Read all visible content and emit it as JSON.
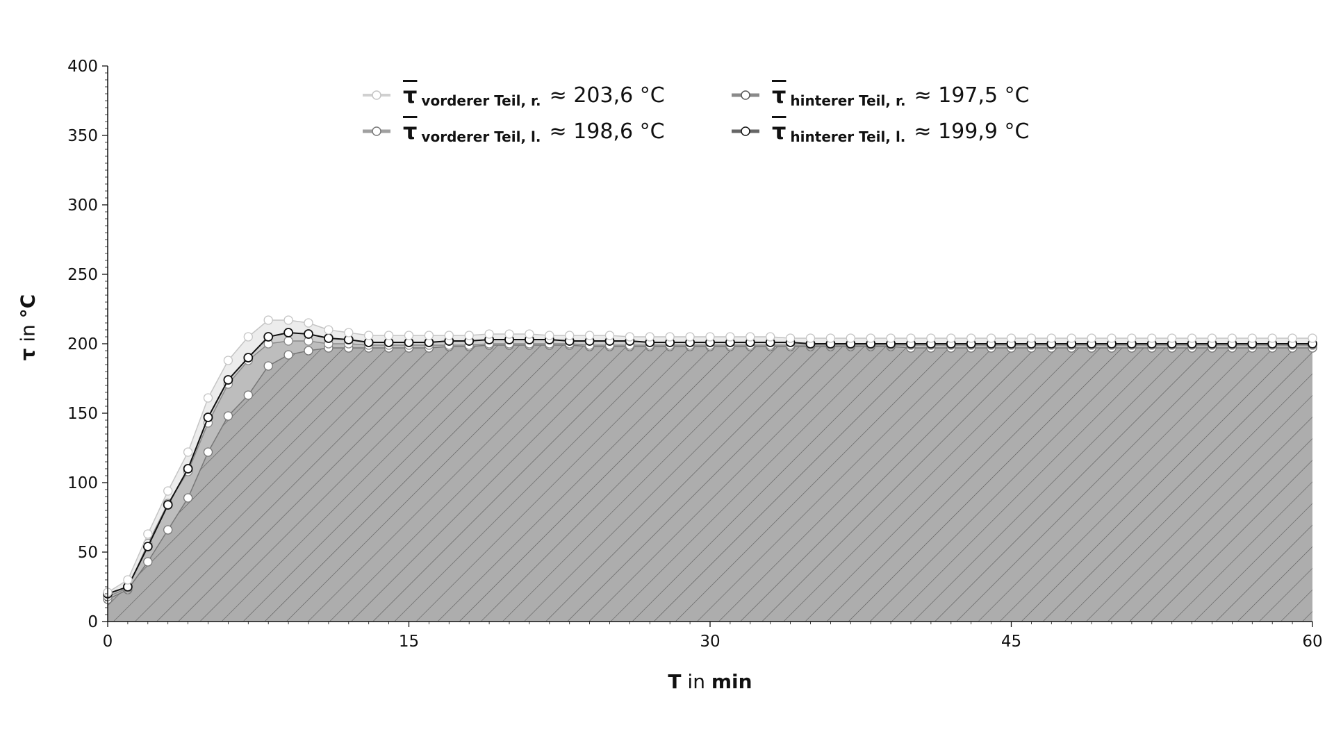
{
  "chart_data": {
    "type": "area",
    "xlabel": {
      "bold": "T",
      "rest": " in ",
      "unit": "min"
    },
    "ylabel": {
      "bold": "τ",
      "rest": " in ",
      "unit": "°C"
    },
    "xlim": [
      0,
      60
    ],
    "ylim": [
      0,
      400
    ],
    "xticks": [
      "0",
      "15",
      "30",
      "45",
      "60"
    ],
    "yticks": [
      "0",
      "50",
      "100",
      "150",
      "200",
      "250",
      "300",
      "350",
      "400"
    ],
    "grid": false,
    "legend_position": "top-center",
    "x": [
      0,
      1,
      2,
      3,
      4,
      5,
      6,
      7,
      8,
      9,
      10,
      11,
      12,
      13,
      14,
      15,
      16,
      17,
      18,
      19,
      20,
      21,
      22,
      23,
      24,
      25,
      26,
      27,
      28,
      29,
      30,
      31,
      32,
      33,
      34,
      35,
      36,
      37,
      38,
      39,
      40,
      41,
      42,
      43,
      44,
      45,
      46,
      47,
      48,
      49,
      50,
      51,
      52,
      53,
      54,
      55,
      56,
      57,
      58,
      59,
      60
    ],
    "series": [
      {
        "key": "vr",
        "symbol": "τ",
        "sub": "vorderer Teil, r.",
        "value": "≈ 203,6 °C",
        "color": "#c4c4c4",
        "fill": "#ececec",
        "values": [
          21,
          30,
          63,
          94,
          122,
          161,
          188,
          205,
          217,
          217,
          215,
          210,
          208,
          206,
          206,
          206,
          206,
          206,
          206,
          207,
          207,
          207,
          206,
          206,
          206,
          206,
          205,
          205,
          205,
          205,
          205,
          205,
          205,
          205,
          204,
          204,
          204,
          204,
          204,
          204,
          204,
          204,
          204,
          204,
          204,
          204,
          204,
          204,
          204,
          204,
          204,
          204,
          204,
          204,
          204,
          204,
          204,
          204,
          204,
          204,
          204
        ]
      },
      {
        "key": "hl",
        "symbol": "τ",
        "sub": "hinterer Teil, l.",
        "value": "≈ 199,9 °C",
        "color": "#111111",
        "fill": "#cfcfcf",
        "values": [
          20,
          25,
          54,
          84,
          110,
          147,
          174,
          190,
          205,
          208,
          207,
          204,
          203,
          201,
          201,
          201,
          201,
          202,
          202,
          203,
          203,
          203,
          203,
          202,
          202,
          202,
          202,
          201,
          201,
          201,
          201,
          201,
          201,
          201,
          201,
          200,
          200,
          200,
          200,
          200,
          200,
          200,
          200,
          200,
          200,
          200,
          200,
          200,
          200,
          200,
          200,
          200,
          200,
          200,
          200,
          200,
          200,
          200,
          200,
          200,
          200
        ]
      },
      {
        "key": "hr",
        "symbol": "τ",
        "sub": "hinterer Teil, r.",
        "value": "≈ 197,5 °C",
        "color": "#8a8a8a",
        "fill": "#bdbdbd",
        "values": [
          18,
          24,
          56,
          85,
          108,
          143,
          171,
          188,
          200,
          202,
          202,
          200,
          200,
          199,
          199,
          199,
          199,
          199,
          199,
          200,
          200,
          200,
          200,
          200,
          199,
          199,
          199,
          199,
          199,
          199,
          199,
          199,
          199,
          199,
          199,
          199,
          199,
          199,
          199,
          199,
          199,
          199,
          199,
          199,
          199,
          199,
          199,
          199,
          199,
          199,
          199,
          199,
          199,
          199,
          199,
          199,
          199,
          199,
          199,
          199,
          199
        ]
      },
      {
        "key": "vl",
        "symbol": "τ",
        "sub": "vorderer Teil, l.",
        "value": "≈ 198,6 °C",
        "color": "#777777",
        "fill": "#adadad",
        "values": [
          16,
          23,
          43,
          66,
          89,
          122,
          148,
          163,
          184,
          192,
          195,
          197,
          197,
          197,
          197,
          197,
          197,
          198,
          198,
          199,
          199,
          199,
          199,
          199,
          198,
          198,
          198,
          198,
          198,
          198,
          198,
          198,
          198,
          198,
          198,
          198,
          198,
          198,
          198,
          198,
          197,
          197,
          197,
          197,
          197,
          197,
          197,
          197,
          197,
          197,
          197,
          197,
          197,
          197,
          197,
          197,
          197,
          197,
          197,
          197,
          197
        ]
      }
    ]
  }
}
